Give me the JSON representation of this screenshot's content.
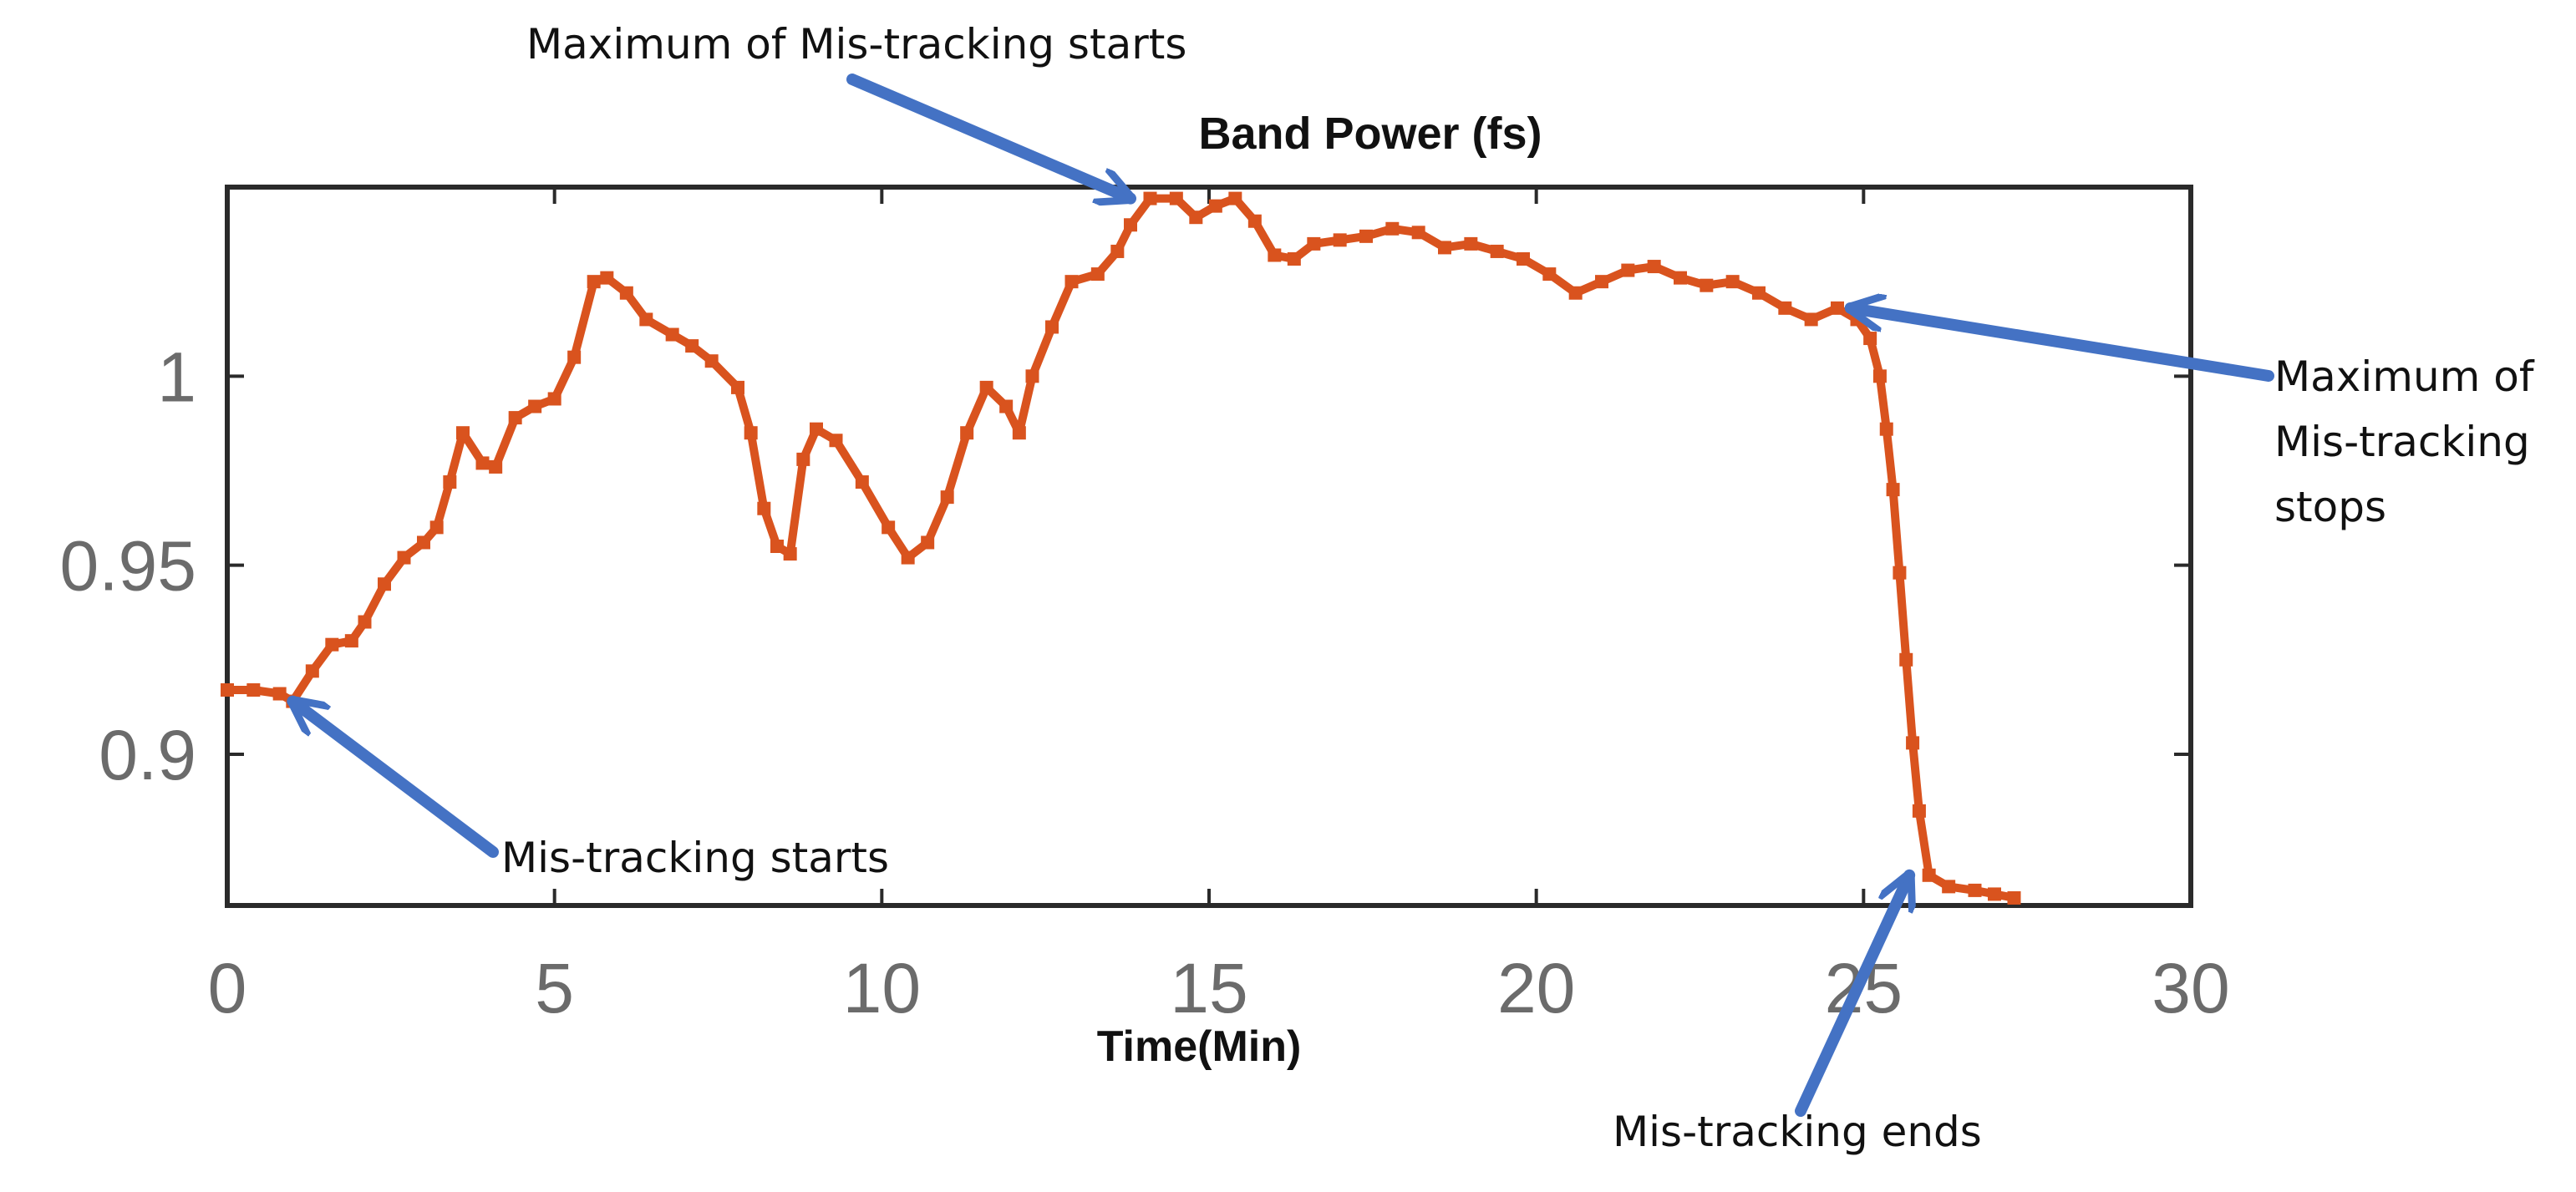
{
  "chart_data": {
    "type": "scatter",
    "title": "Band Power (fs)",
    "xlabel": "Time(Min)",
    "ylabel": "",
    "xlim": [
      0,
      30
    ],
    "ylim": [
      0.86,
      1.05
    ],
    "xticks": [
      0,
      5,
      10,
      15,
      20,
      25,
      30
    ],
    "yticks": [
      0.9,
      0.95,
      1
    ],
    "ytick_labels": [
      "0.9",
      "0.95",
      "1"
    ],
    "grid": false,
    "colors": {
      "series": "#d9531e",
      "arrow": "#4472c4"
    },
    "series": [
      {
        "x": [
          0,
          0.4,
          0.8,
          1.0,
          1.3,
          1.6,
          1.9,
          2.1,
          2.4,
          2.7,
          3.0,
          3.2,
          3.4,
          3.6,
          3.9,
          4.1,
          4.4,
          4.7,
          5.0,
          5.3,
          5.6,
          5.8,
          6.1,
          6.4,
          6.8,
          7.1,
          7.4,
          7.8,
          8.0,
          8.2,
          8.4,
          8.6,
          8.8,
          9.0,
          9.3,
          9.7,
          10.1,
          10.4,
          10.7,
          11.0,
          11.3,
          11.6,
          11.9,
          12.1,
          12.3,
          12.6,
          12.9,
          13.3,
          13.6,
          13.8,
          14.1,
          14.5,
          14.8,
          15.1,
          15.4,
          15.7,
          16.0,
          16.3,
          16.6,
          17.0,
          17.4,
          17.8,
          18.2,
          18.6,
          19.0,
          19.4,
          19.8,
          20.2,
          20.6,
          21.0,
          21.4,
          21.8,
          22.2,
          22.6,
          23.0,
          23.4,
          23.8,
          24.2,
          24.6,
          24.9,
          25.1,
          25.25,
          25.35,
          25.45,
          25.55,
          25.65,
          25.75,
          25.85,
          26.0,
          26.3,
          26.7,
          27.0,
          27.3
        ],
        "y": [
          0.917,
          0.917,
          0.916,
          0.914,
          0.922,
          0.929,
          0.93,
          0.935,
          0.945,
          0.952,
          0.956,
          0.96,
          0.972,
          0.985,
          0.977,
          0.976,
          0.989,
          0.992,
          0.994,
          1.005,
          1.025,
          1.026,
          1.022,
          1.015,
          1.011,
          1.008,
          1.004,
          0.997,
          0.985,
          0.965,
          0.955,
          0.953,
          0.978,
          0.986,
          0.983,
          0.972,
          0.96,
          0.952,
          0.956,
          0.968,
          0.985,
          0.997,
          0.992,
          0.985,
          1.0,
          1.013,
          1.025,
          1.027,
          1.033,
          1.04,
          1.047,
          1.047,
          1.042,
          1.045,
          1.047,
          1.041,
          1.032,
          1.031,
          1.035,
          1.036,
          1.037,
          1.039,
          1.038,
          1.034,
          1.035,
          1.033,
          1.031,
          1.027,
          1.022,
          1.025,
          1.028,
          1.029,
          1.026,
          1.024,
          1.025,
          1.022,
          1.018,
          1.015,
          1.018,
          1.015,
          1.01,
          1.0,
          0.986,
          0.97,
          0.948,
          0.925,
          0.903,
          0.885,
          0.868,
          0.865,
          0.864,
          0.863,
          0.862
        ]
      }
    ],
    "annotations": [
      {
        "lines": [
          "Maximum of Mis-tracking starts"
        ],
        "x": 13.8,
        "y": 1.047
      },
      {
        "lines": [
          "Maximum of",
          "Mis-tracking",
          "stops"
        ],
        "x": 24.8,
        "y": 1.018
      },
      {
        "lines": [
          "Mis-tracking starts"
        ],
        "x": 1.0,
        "y": 0.914
      },
      {
        "lines": [
          "Mis-tracking ends"
        ],
        "x": 25.7,
        "y": 0.868
      }
    ]
  }
}
